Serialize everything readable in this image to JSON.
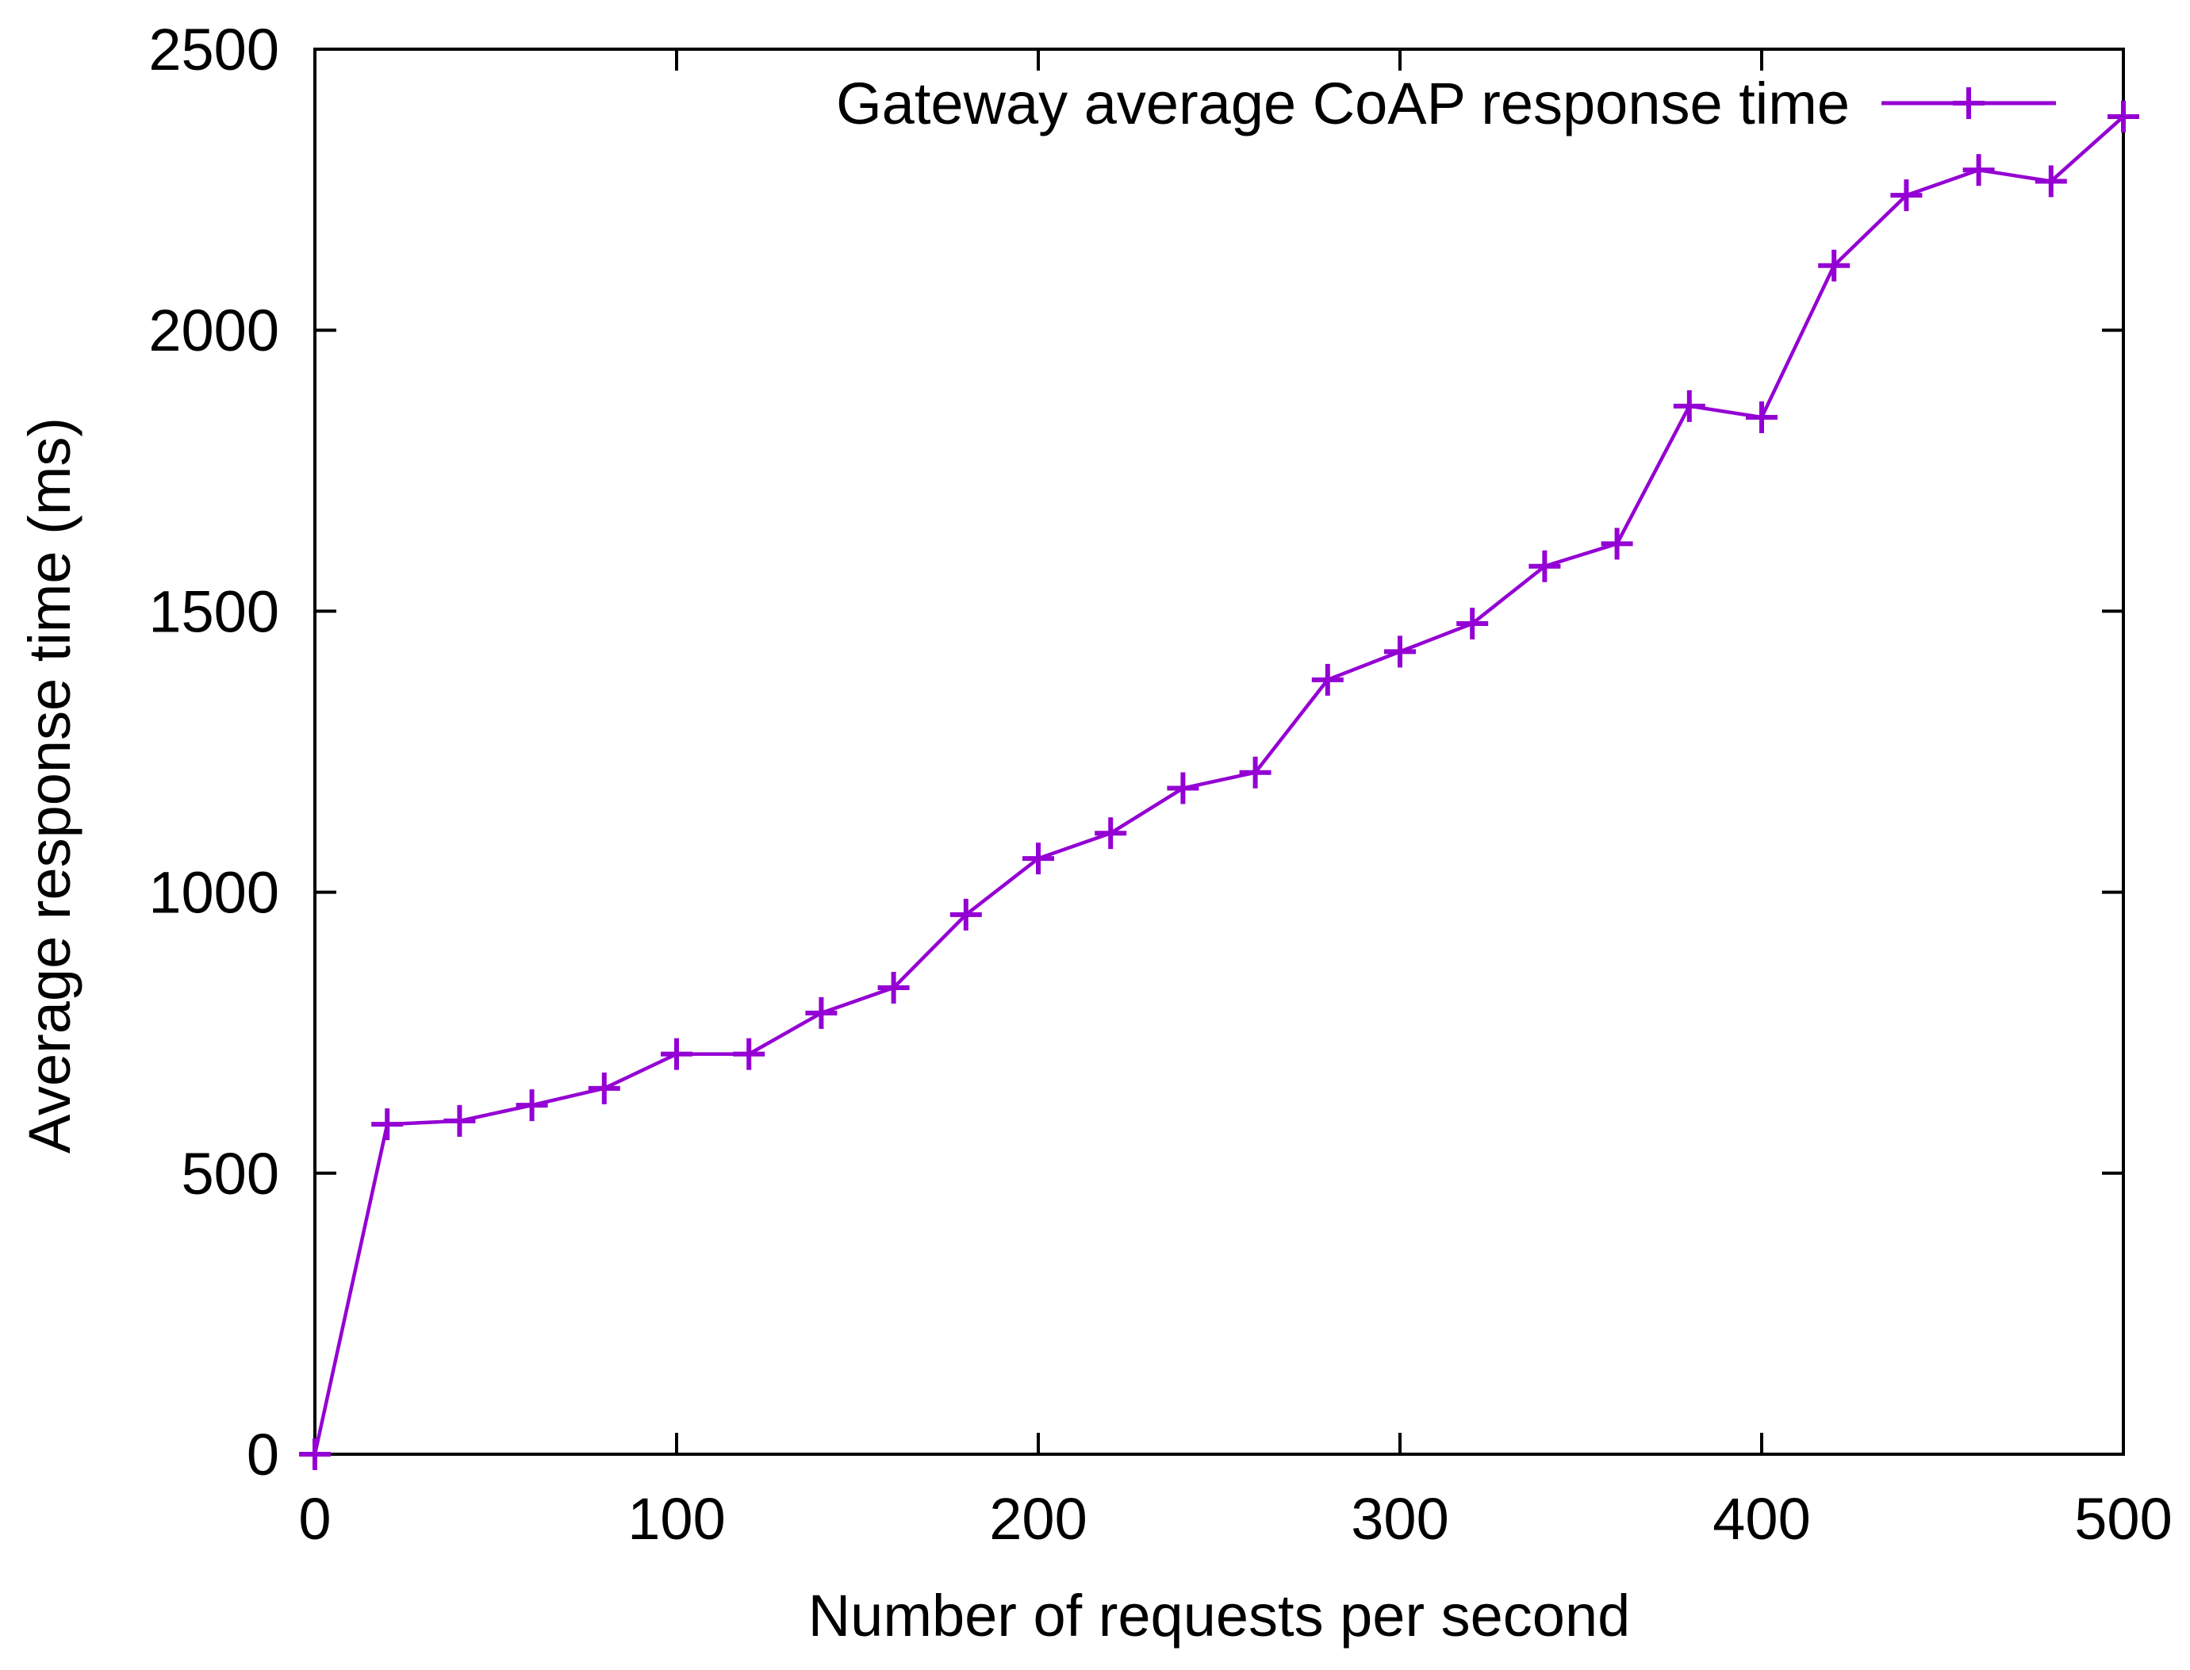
{
  "chart_data": {
    "type": "line",
    "title": "",
    "xlabel": "Number of requests per second",
    "ylabel": "Average response time (ms)",
    "xlim": [
      0,
      500
    ],
    "ylim": [
      0,
      2500
    ],
    "x_ticks": [
      0,
      100,
      200,
      300,
      400,
      500
    ],
    "y_ticks": [
      0,
      500,
      1000,
      1500,
      2000,
      2500
    ],
    "grid": false,
    "legend_position": "top-right-inside",
    "background_color": "#ffffff",
    "axis_color": "#000000",
    "text_color": "#000000",
    "series": [
      {
        "name": "Gateway average CoAP response time",
        "color": "#9400d3",
        "marker": "plus",
        "x": [
          0,
          20,
          40,
          60,
          80,
          100,
          120,
          140,
          160,
          180,
          200,
          220,
          240,
          260,
          280,
          300,
          320,
          340,
          360,
          380,
          400,
          420,
          440,
          460,
          480,
          500
        ],
        "y": [
          0,
          587,
          593,
          621,
          651,
          712,
          712,
          785,
          830,
          960,
          1060,
          1105,
          1185,
          1213,
          1378,
          1428,
          1478,
          1580,
          1620,
          1865,
          1845,
          2115,
          2240,
          2285,
          2265,
          2380
        ]
      }
    ]
  }
}
